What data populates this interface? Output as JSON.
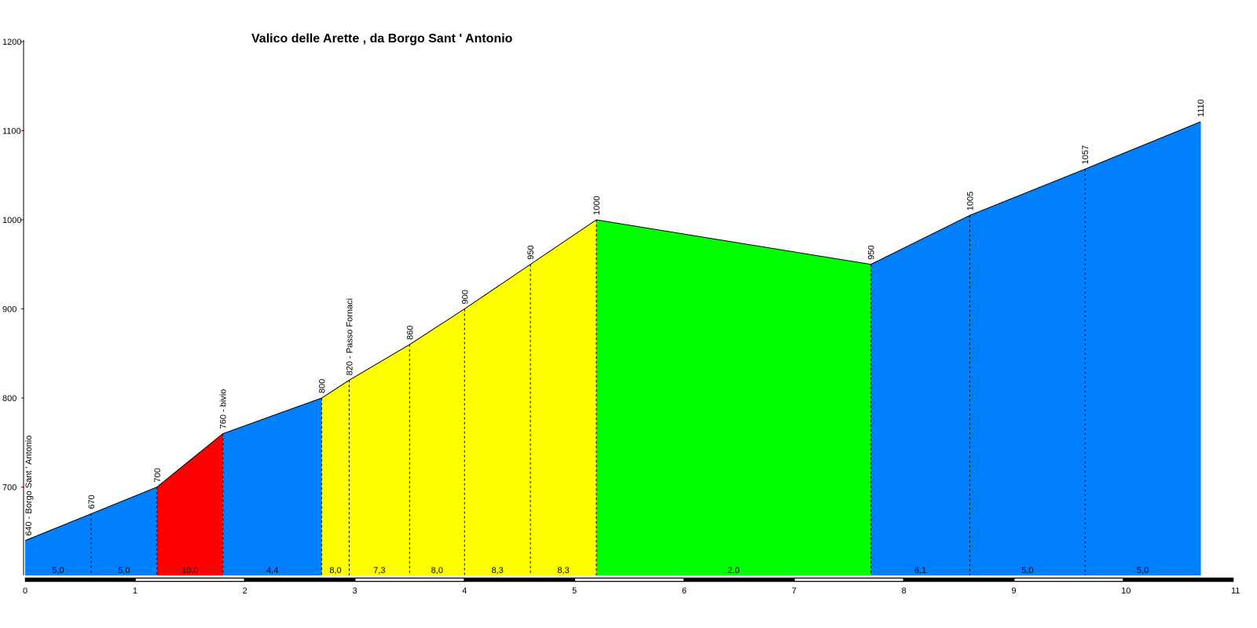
{
  "chart_data": {
    "type": "area",
    "title": "Valico delle Arette , da Borgo Sant ' Antonio",
    "xlabel": "",
    "ylabel": "",
    "xlim": [
      0,
      11
    ],
    "ylim": [
      600,
      1200
    ],
    "x_ticks": [
      "0",
      "1",
      "2",
      "3",
      "4",
      "5",
      "6",
      "7",
      "8",
      "9",
      "10",
      "11"
    ],
    "y_ticks": [
      {
        "value": 700,
        "label": "700"
      },
      {
        "value": 800,
        "label": "800"
      },
      {
        "value": 900,
        "label": "900"
      },
      {
        "value": 1000,
        "label": "1000"
      },
      {
        "value": 1100,
        "label": "1100"
      },
      {
        "value": 1200,
        "label": "1200"
      }
    ],
    "points": [
      {
        "km": 0.0,
        "elev": 640,
        "label": "640 - Borgo Sant ' Antonio"
      },
      {
        "km": 0.6,
        "elev": 670,
        "label": "670"
      },
      {
        "km": 1.2,
        "elev": 700,
        "label": "700"
      },
      {
        "km": 1.8,
        "elev": 760,
        "label": "760 - bivio"
      },
      {
        "km": 2.7,
        "elev": 800,
        "label": "800"
      },
      {
        "km": 2.95,
        "elev": 820,
        "label": "820 - Passo Fornaci"
      },
      {
        "km": 3.5,
        "elev": 860,
        "label": "860"
      },
      {
        "km": 4.0,
        "elev": 900,
        "label": "900"
      },
      {
        "km": 4.6,
        "elev": 950,
        "label": "950"
      },
      {
        "km": 5.2,
        "elev": 1000,
        "label": "1000"
      },
      {
        "km": 7.7,
        "elev": 950,
        "label": "950"
      },
      {
        "km": 8.6,
        "elev": 1005,
        "label": "1005"
      },
      {
        "km": 9.65,
        "elev": 1057,
        "label": "1057"
      },
      {
        "km": 10.7,
        "elev": 1110,
        "label": "1110"
      }
    ],
    "segments": [
      {
        "gradient": "5,0",
        "color": "#0080ff"
      },
      {
        "gradient": "5,0",
        "color": "#0080ff"
      },
      {
        "gradient": "10,0",
        "color": "#ff0000"
      },
      {
        "gradient": "4,4",
        "color": "#0080ff"
      },
      {
        "gradient": "8,0",
        "color": "#ffff00"
      },
      {
        "gradient": "7,3",
        "color": "#ffff00"
      },
      {
        "gradient": "8,0",
        "color": "#ffff00"
      },
      {
        "gradient": "8,3",
        "color": "#ffff00"
      },
      {
        "gradient": "8,3",
        "color": "#ffff00"
      },
      {
        "gradient": "2,0",
        "color": "#00ff00"
      },
      {
        "gradient": "6,1",
        "color": "#0080ff"
      },
      {
        "gradient": "5,0",
        "color": "#0080ff"
      },
      {
        "gradient": "5,0",
        "color": "#0080ff"
      }
    ],
    "grid": false,
    "legend": "none"
  }
}
